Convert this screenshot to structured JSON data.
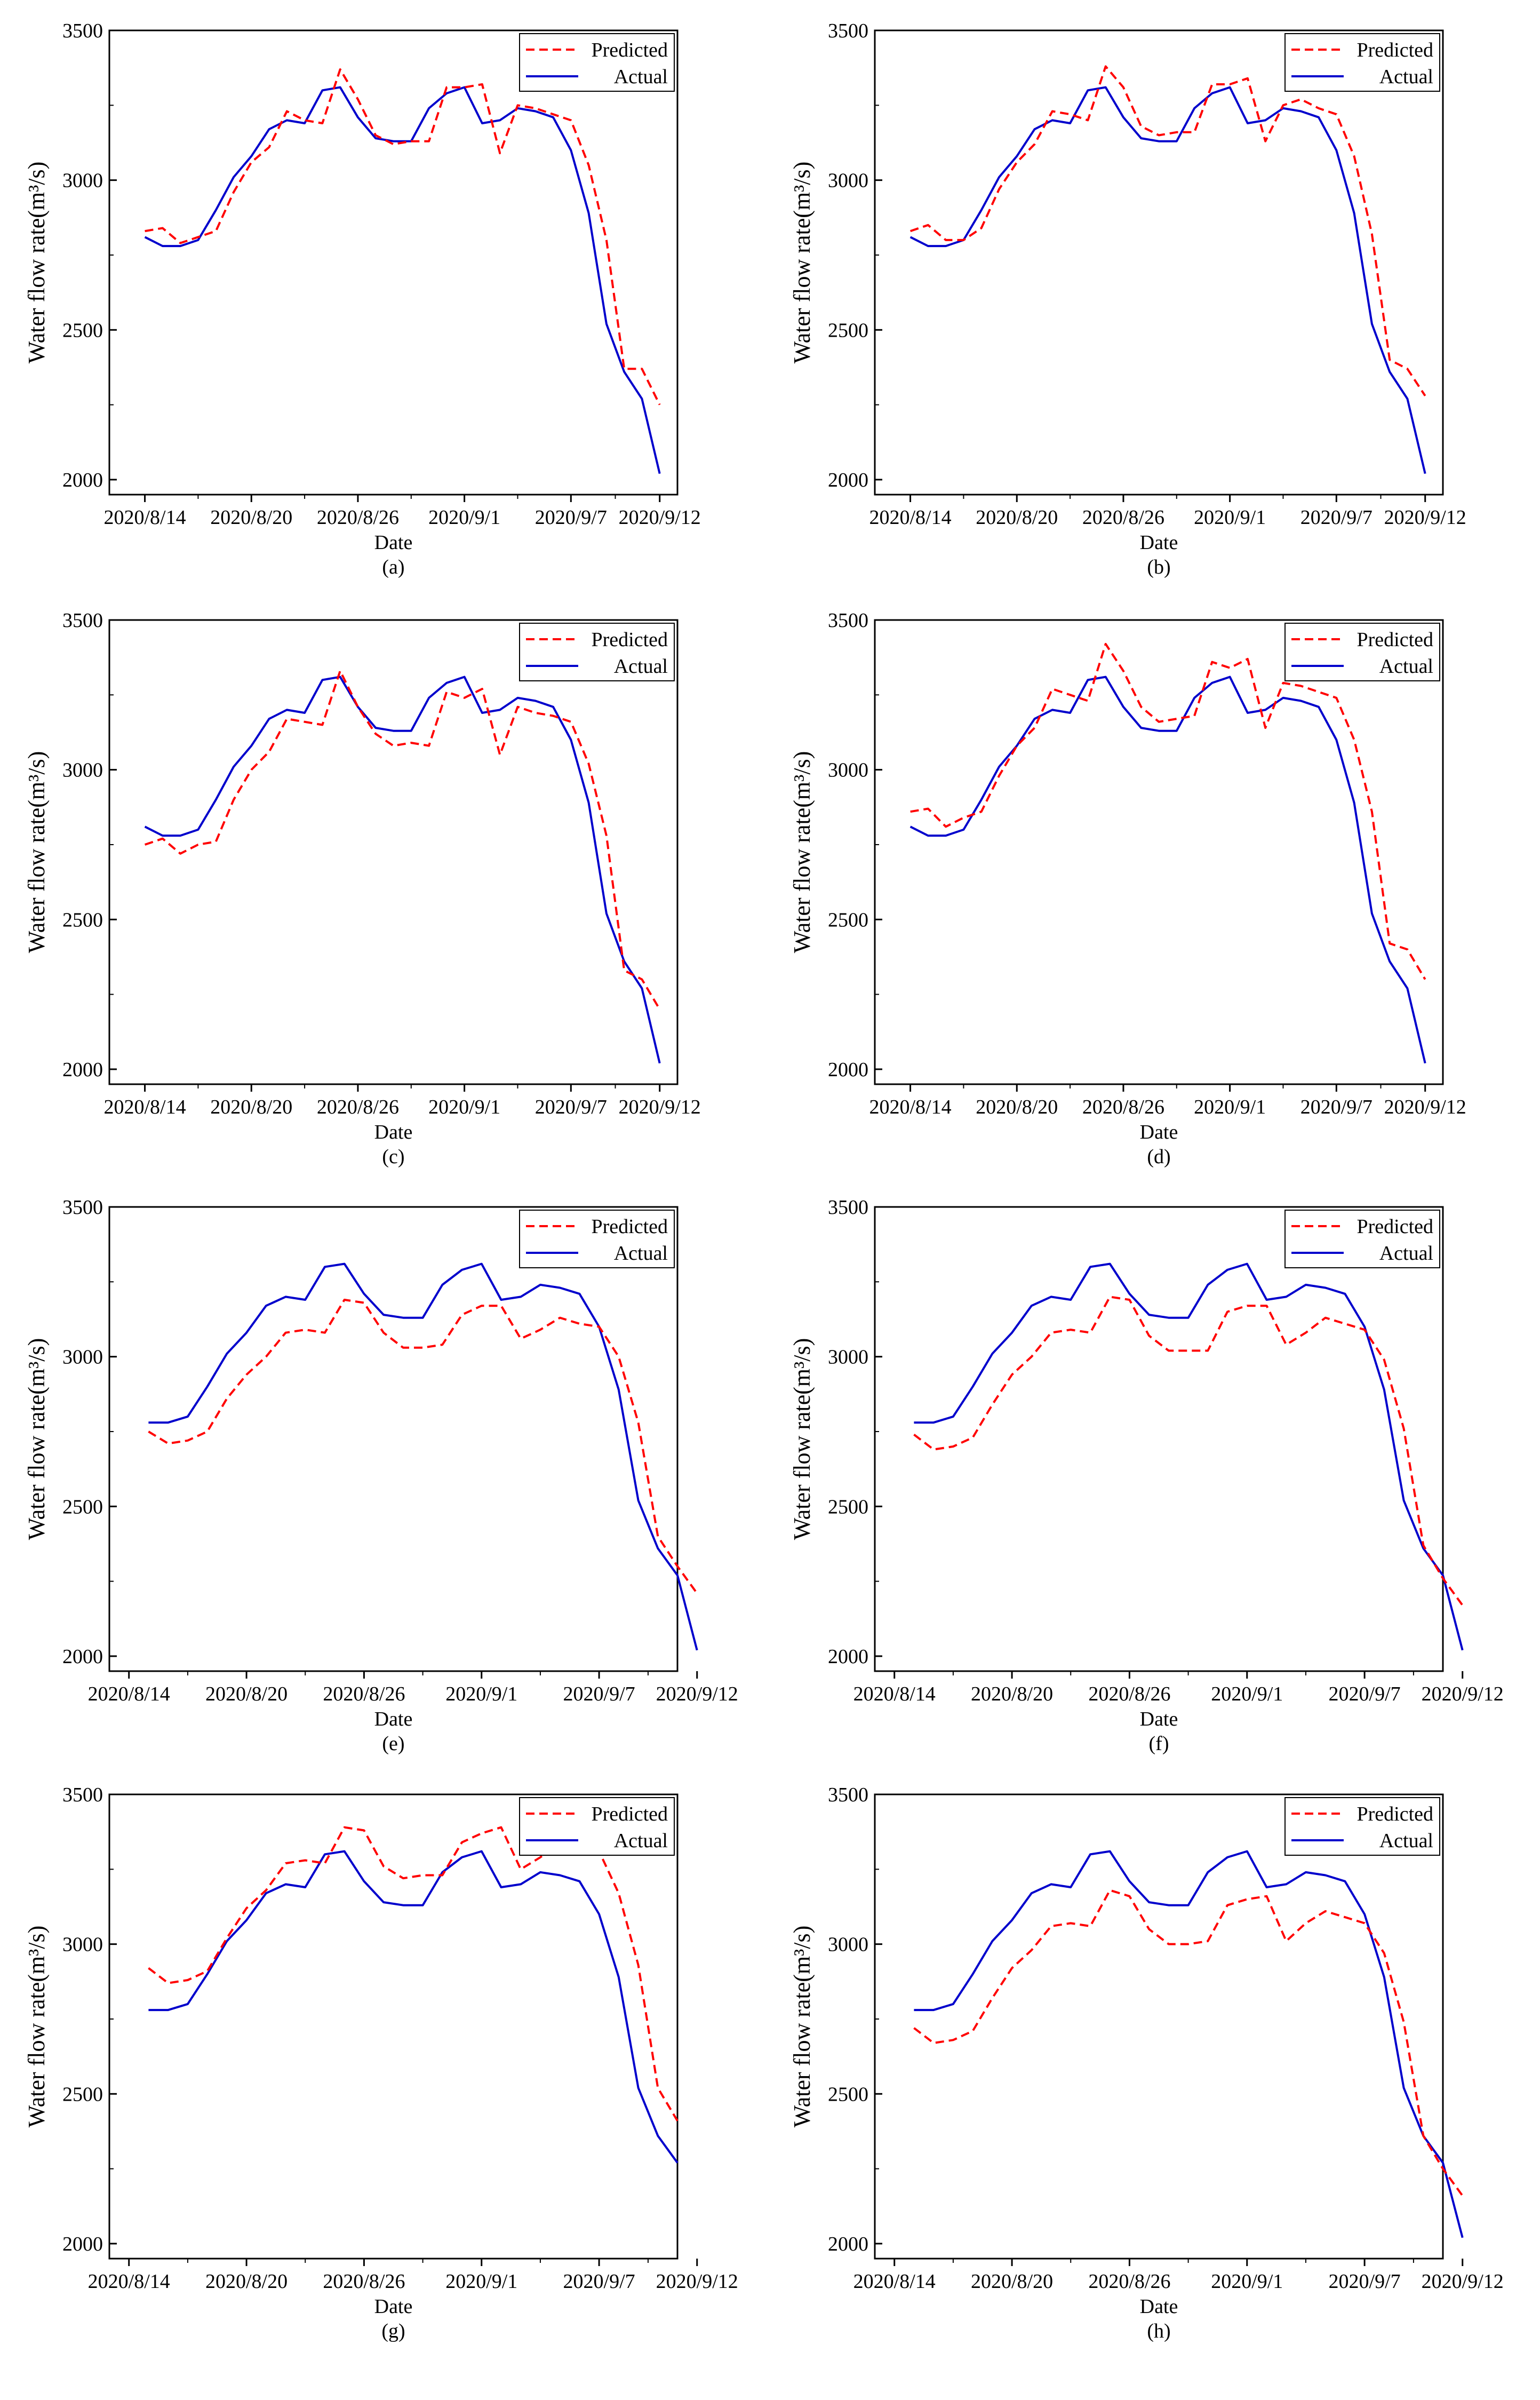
{
  "colors": {
    "predicted": "#ff0000",
    "actual": "#0000cc",
    "axis": "#000000",
    "background": "#ffffff"
  },
  "chart_data": [
    {
      "type": "line",
      "panel": "(a)",
      "xlabel": "Date",
      "ylabel": "Water flow rate(m³/s)",
      "ylim": [
        1950,
        3500
      ],
      "yticks": [
        2000,
        2500,
        3000,
        3500
      ],
      "xlim": [
        -2,
        30
      ],
      "xticks": [
        {
          "x": 0,
          "label": "2020/8/14"
        },
        {
          "x": 6,
          "label": "2020/8/20"
        },
        {
          "x": 12,
          "label": "2020/8/26"
        },
        {
          "x": 18,
          "label": "2020/9/1"
        },
        {
          "x": 24,
          "label": "2020/9/7"
        },
        {
          "x": 29,
          "label": "2020/9/12"
        }
      ],
      "legend": "top-right",
      "x": [
        0,
        1,
        2,
        3,
        4,
        5,
        6,
        7,
        8,
        9,
        10,
        11,
        12,
        13,
        14,
        15,
        16,
        17,
        18,
        19,
        20,
        21,
        22,
        23,
        24,
        25,
        26,
        27,
        28,
        29
      ],
      "series": [
        {
          "name": "Predicted",
          "style": "dashed",
          "values": [
            2830,
            2840,
            2790,
            2810,
            2830,
            2960,
            3060,
            3110,
            3230,
            3200,
            3190,
            3370,
            3270,
            3150,
            3120,
            3130,
            3130,
            3310,
            3310,
            3320,
            3090,
            3250,
            3240,
            3220,
            3200,
            3050,
            2800,
            2370,
            2370,
            2250
          ]
        },
        {
          "name": "Actual",
          "style": "solid",
          "values": [
            2810,
            2780,
            2780,
            2800,
            2900,
            3010,
            3080,
            3170,
            3200,
            3190,
            3300,
            3310,
            3210,
            3140,
            3130,
            3130,
            3240,
            3290,
            3310,
            3190,
            3200,
            3240,
            3230,
            3210,
            3100,
            2890,
            2520,
            2360,
            2270,
            2020
          ]
        }
      ]
    },
    {
      "type": "line",
      "panel": "(b)",
      "xlabel": "Date",
      "ylabel": "Water flow rate(m³/s)",
      "ylim": [
        1950,
        3500
      ],
      "yticks": [
        2000,
        2500,
        3000,
        3500
      ],
      "xlim": [
        -2,
        30
      ],
      "xticks": [
        {
          "x": 0,
          "label": "2020/8/14"
        },
        {
          "x": 6,
          "label": "2020/8/20"
        },
        {
          "x": 12,
          "label": "2020/8/26"
        },
        {
          "x": 18,
          "label": "2020/9/1"
        },
        {
          "x": 24,
          "label": "2020/9/7"
        },
        {
          "x": 29,
          "label": "2020/9/12"
        }
      ],
      "legend": "top-right",
      "x": [
        0,
        1,
        2,
        3,
        4,
        5,
        6,
        7,
        8,
        9,
        10,
        11,
        12,
        13,
        14,
        15,
        16,
        17,
        18,
        19,
        20,
        21,
        22,
        23,
        24,
        25,
        26,
        27,
        28,
        29
      ],
      "series": [
        {
          "name": "Predicted",
          "style": "dashed",
          "values": [
            2830,
            2850,
            2800,
            2800,
            2840,
            2970,
            3060,
            3120,
            3230,
            3220,
            3200,
            3380,
            3310,
            3180,
            3150,
            3160,
            3160,
            3320,
            3320,
            3340,
            3130,
            3250,
            3270,
            3240,
            3220,
            3080,
            2820,
            2400,
            2370,
            2280
          ]
        },
        {
          "name": "Actual",
          "style": "solid",
          "values": [
            2810,
            2780,
            2780,
            2800,
            2900,
            3010,
            3080,
            3170,
            3200,
            3190,
            3300,
            3310,
            3210,
            3140,
            3130,
            3130,
            3240,
            3290,
            3310,
            3190,
            3200,
            3240,
            3230,
            3210,
            3100,
            2890,
            2520,
            2360,
            2270,
            2020
          ]
        }
      ]
    },
    {
      "type": "line",
      "panel": "(c)",
      "xlabel": "Date",
      "ylabel": "Water flow rate(m³/s)",
      "ylim": [
        1950,
        3500
      ],
      "yticks": [
        2000,
        2500,
        3000,
        3500
      ],
      "xlim": [
        -2,
        30
      ],
      "xticks": [
        {
          "x": 0,
          "label": "2020/8/14"
        },
        {
          "x": 6,
          "label": "2020/8/20"
        },
        {
          "x": 12,
          "label": "2020/8/26"
        },
        {
          "x": 18,
          "label": "2020/9/1"
        },
        {
          "x": 24,
          "label": "2020/9/7"
        },
        {
          "x": 29,
          "label": "2020/9/12"
        }
      ],
      "legend": "top-right",
      "x": [
        0,
        1,
        2,
        3,
        4,
        5,
        6,
        7,
        8,
        9,
        10,
        11,
        12,
        13,
        14,
        15,
        16,
        17,
        18,
        19,
        20,
        21,
        22,
        23,
        24,
        25,
        26,
        27,
        28,
        29
      ],
      "series": [
        {
          "name": "Predicted",
          "style": "dashed",
          "values": [
            2750,
            2770,
            2720,
            2750,
            2760,
            2900,
            3000,
            3060,
            3170,
            3160,
            3150,
            3330,
            3210,
            3120,
            3080,
            3090,
            3080,
            3260,
            3240,
            3270,
            3050,
            3210,
            3190,
            3180,
            3160,
            3020,
            2780,
            2330,
            2300,
            2200
          ]
        },
        {
          "name": "Actual",
          "style": "solid",
          "values": [
            2810,
            2780,
            2780,
            2800,
            2900,
            3010,
            3080,
            3170,
            3200,
            3190,
            3300,
            3310,
            3210,
            3140,
            3130,
            3130,
            3240,
            3290,
            3310,
            3190,
            3200,
            3240,
            3230,
            3210,
            3100,
            2890,
            2520,
            2360,
            2270,
            2020
          ]
        }
      ]
    },
    {
      "type": "line",
      "panel": "(d)",
      "xlabel": "Date",
      "ylabel": "Water flow rate(m³/s)",
      "ylim": [
        1950,
        3500
      ],
      "yticks": [
        2000,
        2500,
        3000,
        3500
      ],
      "xlim": [
        -2,
        30
      ],
      "xticks": [
        {
          "x": 0,
          "label": "2020/8/14"
        },
        {
          "x": 6,
          "label": "2020/8/20"
        },
        {
          "x": 12,
          "label": "2020/8/26"
        },
        {
          "x": 18,
          "label": "2020/9/1"
        },
        {
          "x": 24,
          "label": "2020/9/7"
        },
        {
          "x": 29,
          "label": "2020/9/12"
        }
      ],
      "legend": "top-right",
      "x": [
        0,
        1,
        2,
        3,
        4,
        5,
        6,
        7,
        8,
        9,
        10,
        11,
        12,
        13,
        14,
        15,
        16,
        17,
        18,
        19,
        20,
        21,
        22,
        23,
        24,
        25,
        26,
        27,
        28,
        29
      ],
      "series": [
        {
          "name": "Predicted",
          "style": "dashed",
          "values": [
            2860,
            2870,
            2810,
            2840,
            2860,
            2980,
            3080,
            3140,
            3270,
            3250,
            3230,
            3420,
            3330,
            3210,
            3160,
            3170,
            3180,
            3360,
            3340,
            3370,
            3140,
            3290,
            3280,
            3260,
            3240,
            3100,
            2860,
            2420,
            2400,
            2300
          ]
        },
        {
          "name": "Actual",
          "style": "solid",
          "values": [
            2810,
            2780,
            2780,
            2800,
            2900,
            3010,
            3080,
            3170,
            3200,
            3190,
            3300,
            3310,
            3210,
            3140,
            3130,
            3130,
            3240,
            3290,
            3310,
            3190,
            3200,
            3240,
            3230,
            3210,
            3100,
            2890,
            2520,
            2360,
            2270,
            2020
          ]
        }
      ]
    },
    {
      "type": "line",
      "panel": "(e)",
      "xlabel": "Date",
      "ylabel": "Water flow rate(m³/s)",
      "ylim": [
        1950,
        3500
      ],
      "yticks": [
        2000,
        2500,
        3000,
        3500
      ],
      "xlim": [
        -1,
        28
      ],
      "xticks": [
        {
          "x": 0,
          "label": "2020/8/14"
        },
        {
          "x": 6,
          "label": "2020/8/20"
        },
        {
          "x": 12,
          "label": "2020/8/26"
        },
        {
          "x": 18,
          "label": "2020/9/1"
        },
        {
          "x": 24,
          "label": "2020/9/7"
        },
        {
          "x": 29,
          "label": "2020/9/12"
        }
      ],
      "legend": "top-right",
      "x": [
        1,
        2,
        3,
        4,
        5,
        6,
        7,
        8,
        9,
        10,
        11,
        12,
        13,
        14,
        15,
        16,
        17,
        18,
        19,
        20,
        21,
        22,
        23,
        24,
        25,
        26,
        27,
        28,
        29
      ],
      "series": [
        {
          "name": "Predicted",
          "style": "dashed",
          "values": [
            2750,
            2710,
            2720,
            2750,
            2860,
            2940,
            3000,
            3080,
            3090,
            3080,
            3190,
            3180,
            3080,
            3030,
            3030,
            3040,
            3140,
            3170,
            3170,
            3060,
            3090,
            3130,
            3110,
            3100,
            3000,
            2780,
            2400,
            2300,
            2210
          ]
        },
        {
          "name": "Actual",
          "style": "solid",
          "values": [
            2780,
            2780,
            2800,
            2900,
            3010,
            3080,
            3170,
            3200,
            3190,
            3300,
            3310,
            3210,
            3140,
            3130,
            3130,
            3240,
            3290,
            3310,
            3190,
            3200,
            3240,
            3230,
            3210,
            3100,
            2890,
            2520,
            2360,
            2270,
            2020
          ]
        }
      ]
    },
    {
      "type": "line",
      "panel": "(f)",
      "xlabel": "Date",
      "ylabel": "Water flow rate(m³/s)",
      "ylim": [
        1950,
        3500
      ],
      "yticks": [
        2000,
        2500,
        3000,
        3500
      ],
      "xlim": [
        -1,
        28
      ],
      "xticks": [
        {
          "x": 0,
          "label": "2020/8/14"
        },
        {
          "x": 6,
          "label": "2020/8/20"
        },
        {
          "x": 12,
          "label": "2020/8/26"
        },
        {
          "x": 18,
          "label": "2020/9/1"
        },
        {
          "x": 24,
          "label": "2020/9/7"
        },
        {
          "x": 29,
          "label": "2020/9/12"
        }
      ],
      "legend": "top-right",
      "x": [
        1,
        2,
        3,
        4,
        5,
        6,
        7,
        8,
        9,
        10,
        11,
        12,
        13,
        14,
        15,
        16,
        17,
        18,
        19,
        20,
        21,
        22,
        23,
        24,
        25,
        26,
        27,
        28,
        29
      ],
      "series": [
        {
          "name": "Predicted",
          "style": "dashed",
          "values": [
            2740,
            2690,
            2700,
            2730,
            2840,
            2940,
            3000,
            3080,
            3090,
            3080,
            3200,
            3190,
            3070,
            3020,
            3020,
            3020,
            3150,
            3170,
            3170,
            3040,
            3080,
            3130,
            3110,
            3090,
            2990,
            2760,
            2370,
            2260,
            2170
          ]
        },
        {
          "name": "Actual",
          "style": "solid",
          "values": [
            2780,
            2780,
            2800,
            2900,
            3010,
            3080,
            3170,
            3200,
            3190,
            3300,
            3310,
            3210,
            3140,
            3130,
            3130,
            3240,
            3290,
            3310,
            3190,
            3200,
            3240,
            3230,
            3210,
            3100,
            2890,
            2520,
            2360,
            2270,
            2020
          ]
        }
      ]
    },
    {
      "type": "line",
      "panel": "(g)",
      "xlabel": "Date",
      "ylabel": "Water flow rate(m³/s)",
      "ylim": [
        1950,
        3500
      ],
      "yticks": [
        2000,
        2500,
        3000,
        3500
      ],
      "xlim": [
        -1,
        28
      ],
      "xticks": [
        {
          "x": 0,
          "label": "2020/8/14"
        },
        {
          "x": 6,
          "label": "2020/8/20"
        },
        {
          "x": 12,
          "label": "2020/8/26"
        },
        {
          "x": 18,
          "label": "2020/9/1"
        },
        {
          "x": 24,
          "label": "2020/9/7"
        },
        {
          "x": 29,
          "label": "2020/9/12"
        }
      ],
      "legend": "top-right",
      "x": [
        1,
        2,
        3,
        4,
        5,
        6,
        7,
        8,
        9,
        10,
        11,
        12,
        13,
        14,
        15,
        16,
        17,
        18,
        19,
        20,
        21,
        22,
        23,
        24,
        25,
        26,
        27,
        28
      ],
      "series": [
        {
          "name": "Predicted",
          "style": "dashed",
          "values": [
            2920,
            2870,
            2880,
            2910,
            3020,
            3120,
            3180,
            3270,
            3280,
            3270,
            3390,
            3380,
            3260,
            3220,
            3230,
            3230,
            3340,
            3370,
            3390,
            3250,
            3290,
            3340,
            3330,
            3310,
            3170,
            2930,
            2520,
            2410
          ]
        },
        {
          "name": "Actual",
          "style": "solid",
          "values": [
            2780,
            2780,
            2800,
            2900,
            3010,
            3080,
            3170,
            3200,
            3190,
            3300,
            3310,
            3210,
            3140,
            3130,
            3130,
            3240,
            3290,
            3310,
            3190,
            3200,
            3240,
            3230,
            3210,
            3100,
            2890,
            2520,
            2360,
            2270
          ]
        }
      ]
    },
    {
      "type": "line",
      "panel": "(h)",
      "xlabel": "Date",
      "ylabel": "Water flow rate(m³/s)",
      "ylim": [
        1950,
        3500
      ],
      "yticks": [
        2000,
        2500,
        3000,
        3500
      ],
      "xlim": [
        -1,
        28
      ],
      "xticks": [
        {
          "x": 0,
          "label": "2020/8/14"
        },
        {
          "x": 6,
          "label": "2020/8/20"
        },
        {
          "x": 12,
          "label": "2020/8/26"
        },
        {
          "x": 18,
          "label": "2020/9/1"
        },
        {
          "x": 24,
          "label": "2020/9/7"
        },
        {
          "x": 29,
          "label": "2020/9/12"
        }
      ],
      "legend": "top-right",
      "x": [
        1,
        2,
        3,
        4,
        5,
        6,
        7,
        8,
        9,
        10,
        11,
        12,
        13,
        14,
        15,
        16,
        17,
        18,
        19,
        20,
        21,
        22,
        23,
        24,
        25,
        26,
        27,
        28,
        29
      ],
      "series": [
        {
          "name": "Predicted",
          "style": "dashed",
          "values": [
            2720,
            2670,
            2680,
            2710,
            2820,
            2920,
            2980,
            3060,
            3070,
            3060,
            3180,
            3160,
            3050,
            3000,
            3000,
            3010,
            3130,
            3150,
            3160,
            3010,
            3070,
            3110,
            3090,
            3070,
            2970,
            2740,
            2360,
            2250,
            2160
          ]
        },
        {
          "name": "Actual",
          "style": "solid",
          "values": [
            2780,
            2780,
            2800,
            2900,
            3010,
            3080,
            3170,
            3200,
            3190,
            3300,
            3310,
            3210,
            3140,
            3130,
            3130,
            3240,
            3290,
            3310,
            3190,
            3200,
            3240,
            3230,
            3210,
            3100,
            2890,
            2520,
            2360,
            2270,
            2020
          ]
        }
      ]
    }
  ]
}
